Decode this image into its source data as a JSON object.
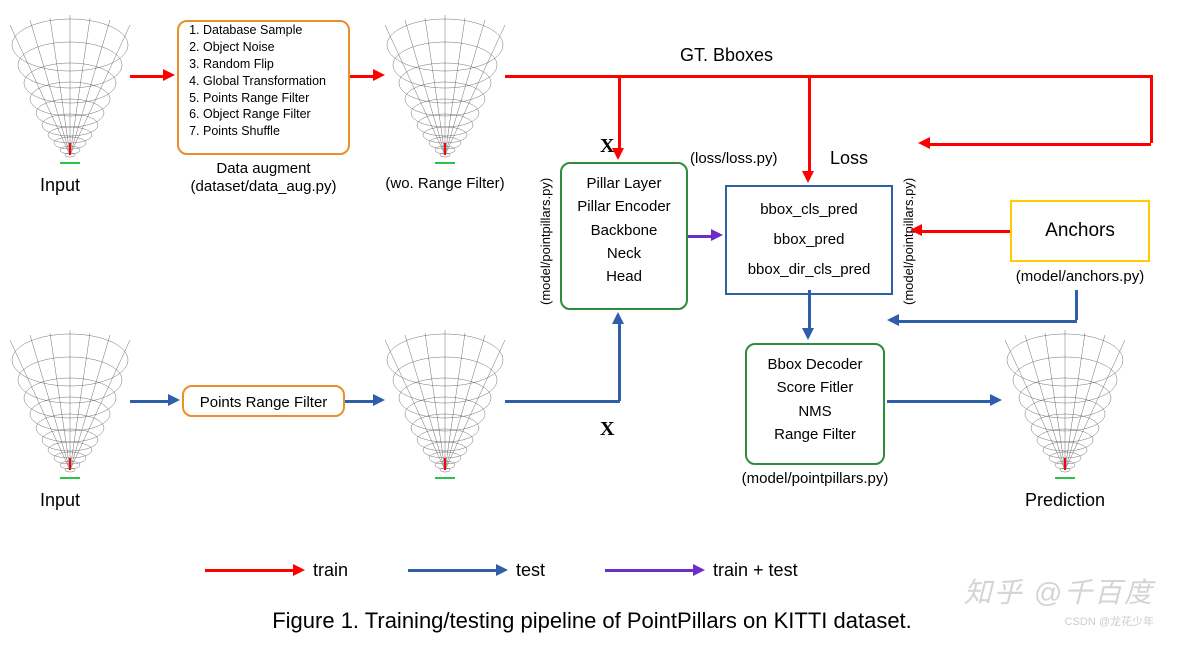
{
  "colors": {
    "train": "#ff0000",
    "test": "#2f5fa8",
    "traintest": "#6a2fc4",
    "box_orange": "#e8902a",
    "box_green": "#2e8b3f",
    "box_blue": "#2f5fa8",
    "box_yellow": "#ffcc00",
    "text": "#000000"
  },
  "labels": {
    "input_top": "Input",
    "input_bottom": "Input",
    "wo_range": "(wo. Range Filter)",
    "data_augment_1": "Data augment",
    "data_augment_2": "(dataset/data_aug.py)",
    "gt_bboxes": "GT. Bboxes",
    "loss": "Loss",
    "loss_path": "(loss/loss.py)",
    "x_top": "X",
    "x_bottom": "X",
    "anchors_path": "(model/anchors.py)",
    "model_path_left": "(model/pointpillars.py)",
    "model_path_right": "(model/pointpillars.py)",
    "model_path_bottom": "(model/pointpillars.py)",
    "prediction": "Prediction",
    "legend_train": "train",
    "legend_test": "test",
    "legend_traintest": "train + test",
    "caption": "Figure 1. Training/testing pipeline of PointPillars  on KITTI dataset."
  },
  "boxes": {
    "augment": {
      "items": [
        "Database Sample",
        "Object Noise",
        "Random Flip",
        "Global Transformation",
        "Points Range Filter",
        "Object Range Filter",
        "Points Shuffle"
      ]
    },
    "range_filter": {
      "text": "Points Range Filter"
    },
    "model": {
      "lines": [
        "Pillar Layer",
        "Pillar Encoder",
        "Backbone",
        "Neck",
        "Head"
      ]
    },
    "preds": {
      "lines": [
        "bbox_cls_pred",
        "bbox_pred",
        "bbox_dir_cls_pred"
      ]
    },
    "anchors": {
      "text": "Anchors"
    },
    "decoder": {
      "lines": [
        "Bbox Decoder",
        "Score Fitler",
        "NMS",
        "Range Filter"
      ]
    }
  },
  "legend": {
    "items": [
      {
        "label": "train",
        "color": "#ff0000"
      },
      {
        "label": "test",
        "color": "#2f5fa8"
      },
      {
        "label": "train + test",
        "color": "#6a2fc4"
      }
    ]
  },
  "watermark": {
    "main": "知乎 @千百度",
    "csdn": "CSDN @龙花少年"
  }
}
